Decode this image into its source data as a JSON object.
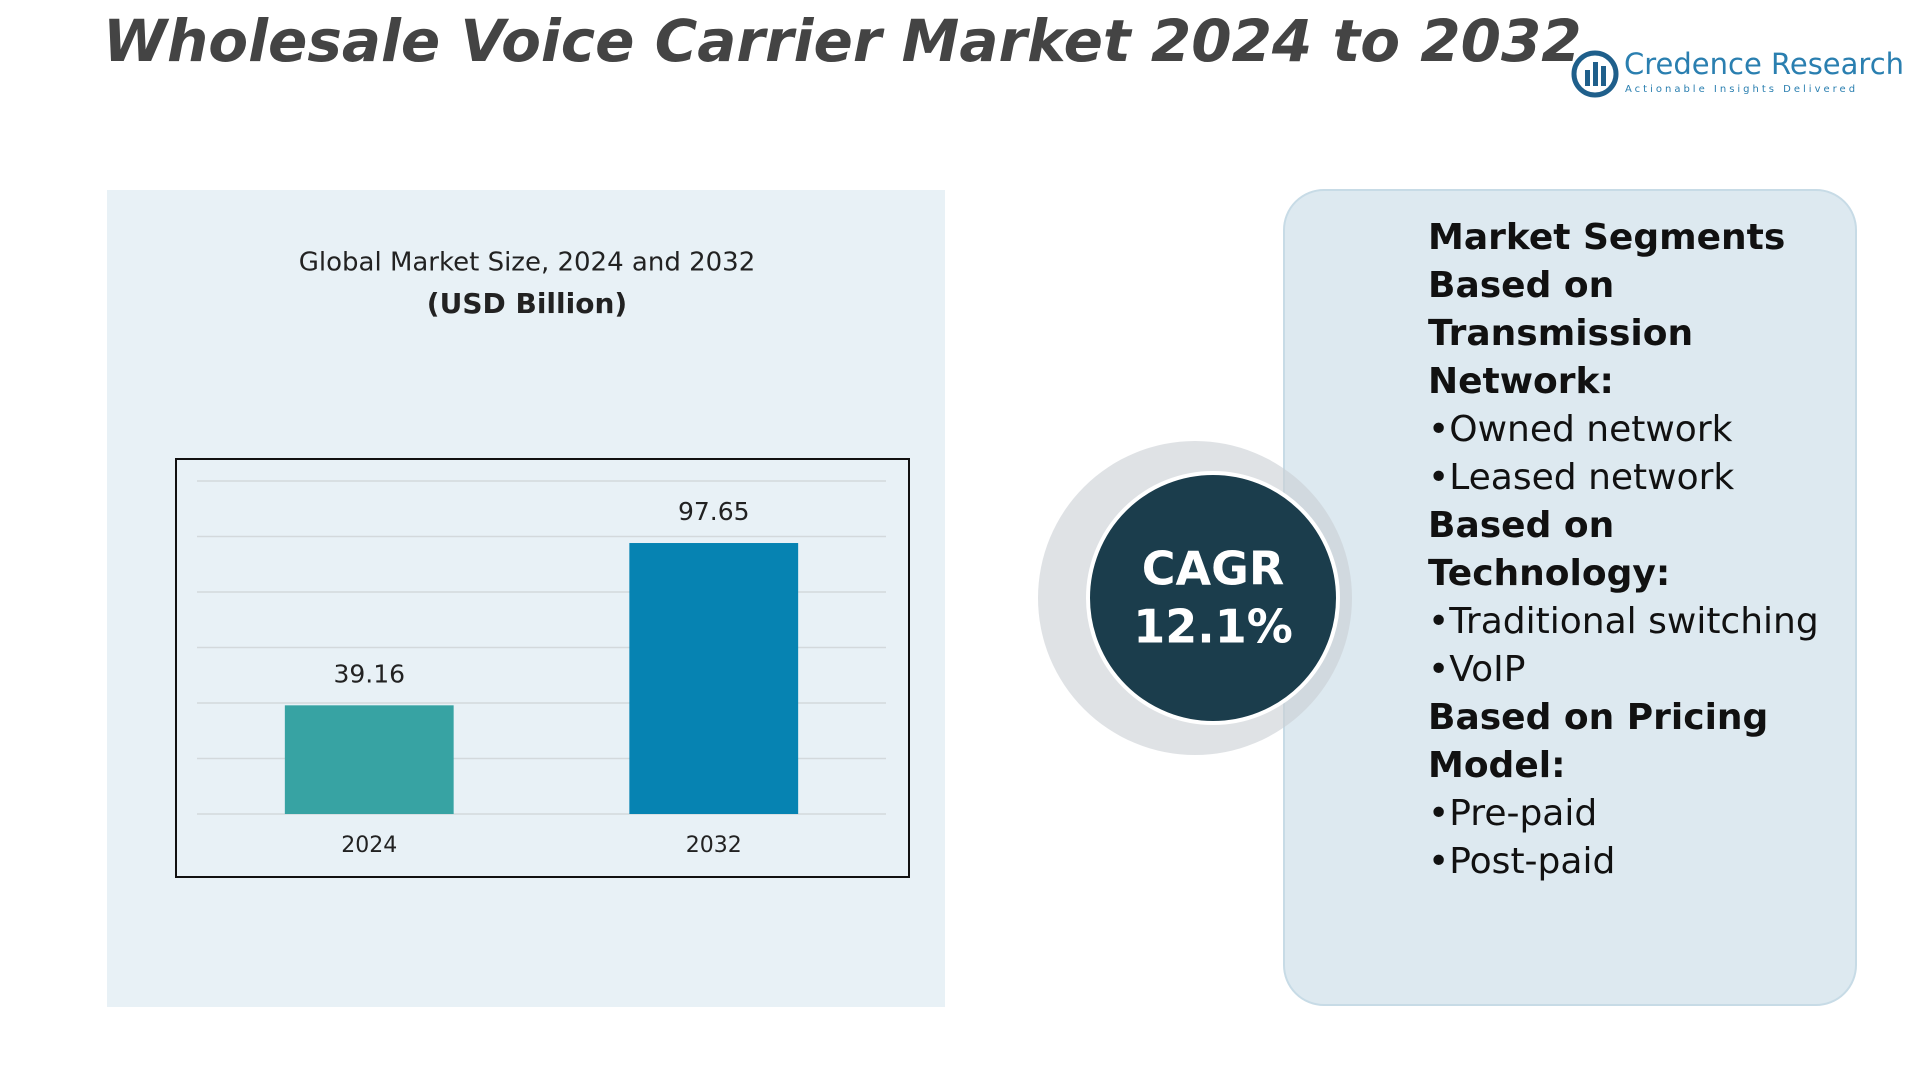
{
  "header": {
    "title": "Wholesale Voice Carrier Market 2024 to 2032",
    "brand": "Credence Research",
    "tagline": "Actionable Insights Delivered"
  },
  "chart_data": {
    "type": "bar",
    "title": "Global Market Size, 2024 and 2032",
    "subtitle": "(USD Billion)",
    "categories": [
      "2024",
      "2032"
    ],
    "values": [
      39.16,
      97.65
    ],
    "colors": [
      "#37a3a3",
      "#0683b2"
    ],
    "ylim": [
      0,
      120
    ],
    "yticks": [
      0,
      20,
      40,
      60,
      80,
      100,
      120
    ],
    "grid": true
  },
  "cagr": {
    "label": "CAGR",
    "value": "12.1%"
  },
  "segments": [
    {
      "heading": "Market Segments Based on Transmission Network:",
      "items": [
        "Owned network",
        "Leased network"
      ]
    },
    {
      "heading": "Based on Technology:",
      "items": [
        "Traditional switching",
        "VoIP"
      ]
    },
    {
      "heading": "Based on Pricing Model:",
      "items": [
        "Pre-paid",
        "Post-paid"
      ]
    }
  ]
}
